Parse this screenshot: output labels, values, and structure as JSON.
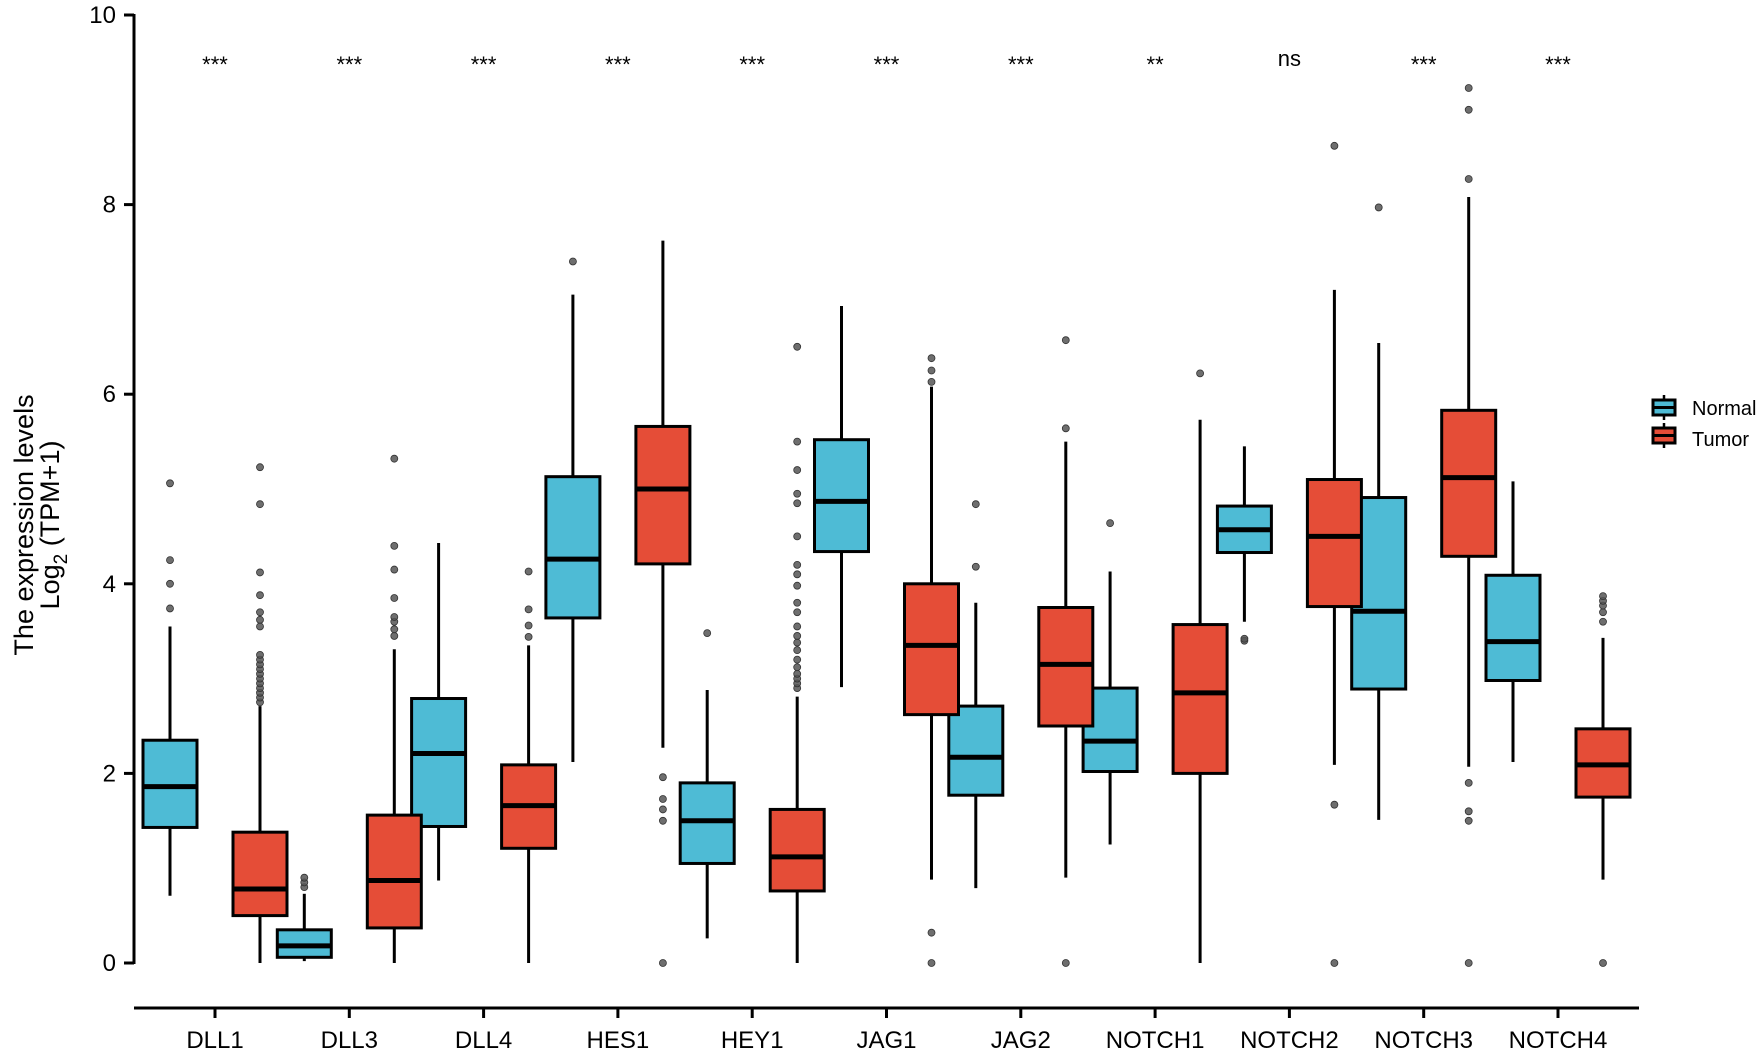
{
  "chart_data": {
    "type": "boxplot",
    "title": "",
    "xlabel": "",
    "ylabel_line1": "The expression levels",
    "ylabel_line2_prefix": "Log",
    "ylabel_line2_sub": "2",
    "ylabel_line2_suffix": " (TPM+1)",
    "ylim": [
      0,
      10
    ],
    "yticks": [
      0,
      2,
      4,
      6,
      8,
      10
    ],
    "ytick_labels": [
      "0",
      "2",
      "4",
      "6",
      "8",
      "10"
    ],
    "grid": false,
    "legend": {
      "placement": "right",
      "entries": [
        {
          "name": "Normal",
          "color": "#4EBBD5"
        },
        {
          "name": "Tumor",
          "color": "#E54D37"
        }
      ]
    },
    "categories": [
      "DLL1",
      "DLL3",
      "DLL4",
      "HES1",
      "HEY1",
      "JAG1",
      "JAG2",
      "NOTCH1",
      "NOTCH2",
      "NOTCH3",
      "NOTCH4"
    ],
    "significance": [
      "***",
      "***",
      "***",
      "***",
      "***",
      "***",
      "***",
      "**",
      "ns",
      "***",
      "***"
    ],
    "series": [
      {
        "name": "Normal",
        "color": "#4EBBD5",
        "boxes": [
          {
            "whisker_low": 0.71,
            "q1": 1.43,
            "median": 1.86,
            "q3": 2.35,
            "whisker_high": 3.55,
            "outliers": [
              3.74,
              4.0,
              4.25,
              5.06
            ]
          },
          {
            "whisker_low": 0.02,
            "q1": 0.06,
            "median": 0.18,
            "q3": 0.35,
            "whisker_high": 0.73,
            "outliers": [
              0.8,
              0.85,
              0.9
            ]
          },
          {
            "whisker_low": 0.87,
            "q1": 1.44,
            "median": 2.21,
            "q3": 2.79,
            "whisker_high": 4.43,
            "outliers": []
          },
          {
            "whisker_low": 2.12,
            "q1": 3.64,
            "median": 4.26,
            "q3": 5.13,
            "whisker_high": 7.05,
            "outliers": [
              7.4
            ]
          },
          {
            "whisker_low": 0.26,
            "q1": 1.05,
            "median": 1.5,
            "q3": 1.9,
            "whisker_high": 2.88,
            "outliers": [
              3.48
            ]
          },
          {
            "whisker_low": 2.91,
            "q1": 4.34,
            "median": 4.87,
            "q3": 5.52,
            "whisker_high": 6.93,
            "outliers": []
          },
          {
            "whisker_low": 0.79,
            "q1": 1.77,
            "median": 2.17,
            "q3": 2.71,
            "whisker_high": 3.8,
            "outliers": [
              4.18,
              4.84
            ]
          },
          {
            "whisker_low": 1.25,
            "q1": 2.02,
            "median": 2.34,
            "q3": 2.9,
            "whisker_high": 4.13,
            "outliers": [
              4.64
            ]
          },
          {
            "whisker_low": 3.6,
            "q1": 4.33,
            "median": 4.57,
            "q3": 4.82,
            "whisker_high": 5.45,
            "outliers": [
              3.4,
              3.42
            ]
          },
          {
            "whisker_low": 1.51,
            "q1": 2.89,
            "median": 3.71,
            "q3": 4.91,
            "whisker_high": 6.54,
            "outliers": [
              7.97
            ]
          },
          {
            "whisker_low": 2.12,
            "q1": 2.98,
            "median": 3.39,
            "q3": 4.09,
            "whisker_high": 5.08,
            "outliers": []
          }
        ]
      },
      {
        "name": "Tumor",
        "color": "#E54D37",
        "boxes": [
          {
            "whisker_low": 0.0,
            "q1": 0.5,
            "median": 0.78,
            "q3": 1.38,
            "whisker_high": 2.71,
            "outliers": [
              2.75,
              2.8,
              2.85,
              2.9,
              2.95,
              3.0,
              3.05,
              3.1,
              3.15,
              3.2,
              3.25,
              3.55,
              3.62,
              3.7,
              3.88,
              4.12,
              4.84,
              5.23
            ]
          },
          {
            "whisker_low": 0.0,
            "q1": 0.37,
            "median": 0.87,
            "q3": 1.56,
            "whisker_high": 3.31,
            "outliers": [
              3.45,
              3.52,
              3.6,
              3.65,
              3.85,
              4.15,
              4.4,
              5.32
            ]
          },
          {
            "whisker_low": 0.0,
            "q1": 1.21,
            "median": 1.66,
            "q3": 2.09,
            "whisker_high": 3.35,
            "outliers": [
              3.44,
              3.56,
              3.73,
              4.13
            ]
          },
          {
            "whisker_low": 2.27,
            "q1": 4.21,
            "median": 5.0,
            "q3": 5.66,
            "whisker_high": 7.62,
            "outliers": [
              1.96,
              1.73,
              1.62,
              1.5,
              0.0
            ]
          },
          {
            "whisker_low": 0.0,
            "q1": 0.76,
            "median": 1.12,
            "q3": 1.62,
            "whisker_high": 2.81,
            "outliers": [
              2.9,
              2.95,
              3.0,
              3.05,
              3.12,
              3.2,
              3.3,
              3.38,
              3.45,
              3.55,
              3.7,
              3.8,
              3.98,
              4.1,
              4.2,
              4.5,
              4.85,
              4.95,
              5.2,
              5.5,
              6.5
            ]
          },
          {
            "whisker_low": 0.88,
            "q1": 2.62,
            "median": 3.35,
            "q3": 4.0,
            "whisker_high": 6.08,
            "outliers": [
              6.13,
              6.25,
              6.38,
              0.32,
              0.0
            ]
          },
          {
            "whisker_low": 0.9,
            "q1": 2.5,
            "median": 3.15,
            "q3": 3.75,
            "whisker_high": 5.5,
            "outliers": [
              5.64,
              6.57,
              0.0
            ]
          },
          {
            "whisker_low": 0.0,
            "q1": 2.0,
            "median": 2.85,
            "q3": 3.57,
            "whisker_high": 5.73,
            "outliers": [
              6.22
            ]
          },
          {
            "whisker_low": 2.09,
            "q1": 3.76,
            "median": 4.5,
            "q3": 5.1,
            "whisker_high": 7.1,
            "outliers": [
              8.62,
              1.67,
              0.0
            ]
          },
          {
            "whisker_low": 2.07,
            "q1": 4.29,
            "median": 5.12,
            "q3": 5.83,
            "whisker_high": 8.08,
            "outliers": [
              9.23,
              9.0,
              8.27,
              1.9,
              1.6,
              1.5,
              0.0
            ]
          },
          {
            "whisker_low": 0.88,
            "q1": 1.75,
            "median": 2.09,
            "q3": 2.47,
            "whisker_high": 3.43,
            "outliers": [
              3.6,
              3.7,
              3.77,
              3.82,
              3.87,
              0.0
            ]
          }
        ]
      }
    ]
  }
}
